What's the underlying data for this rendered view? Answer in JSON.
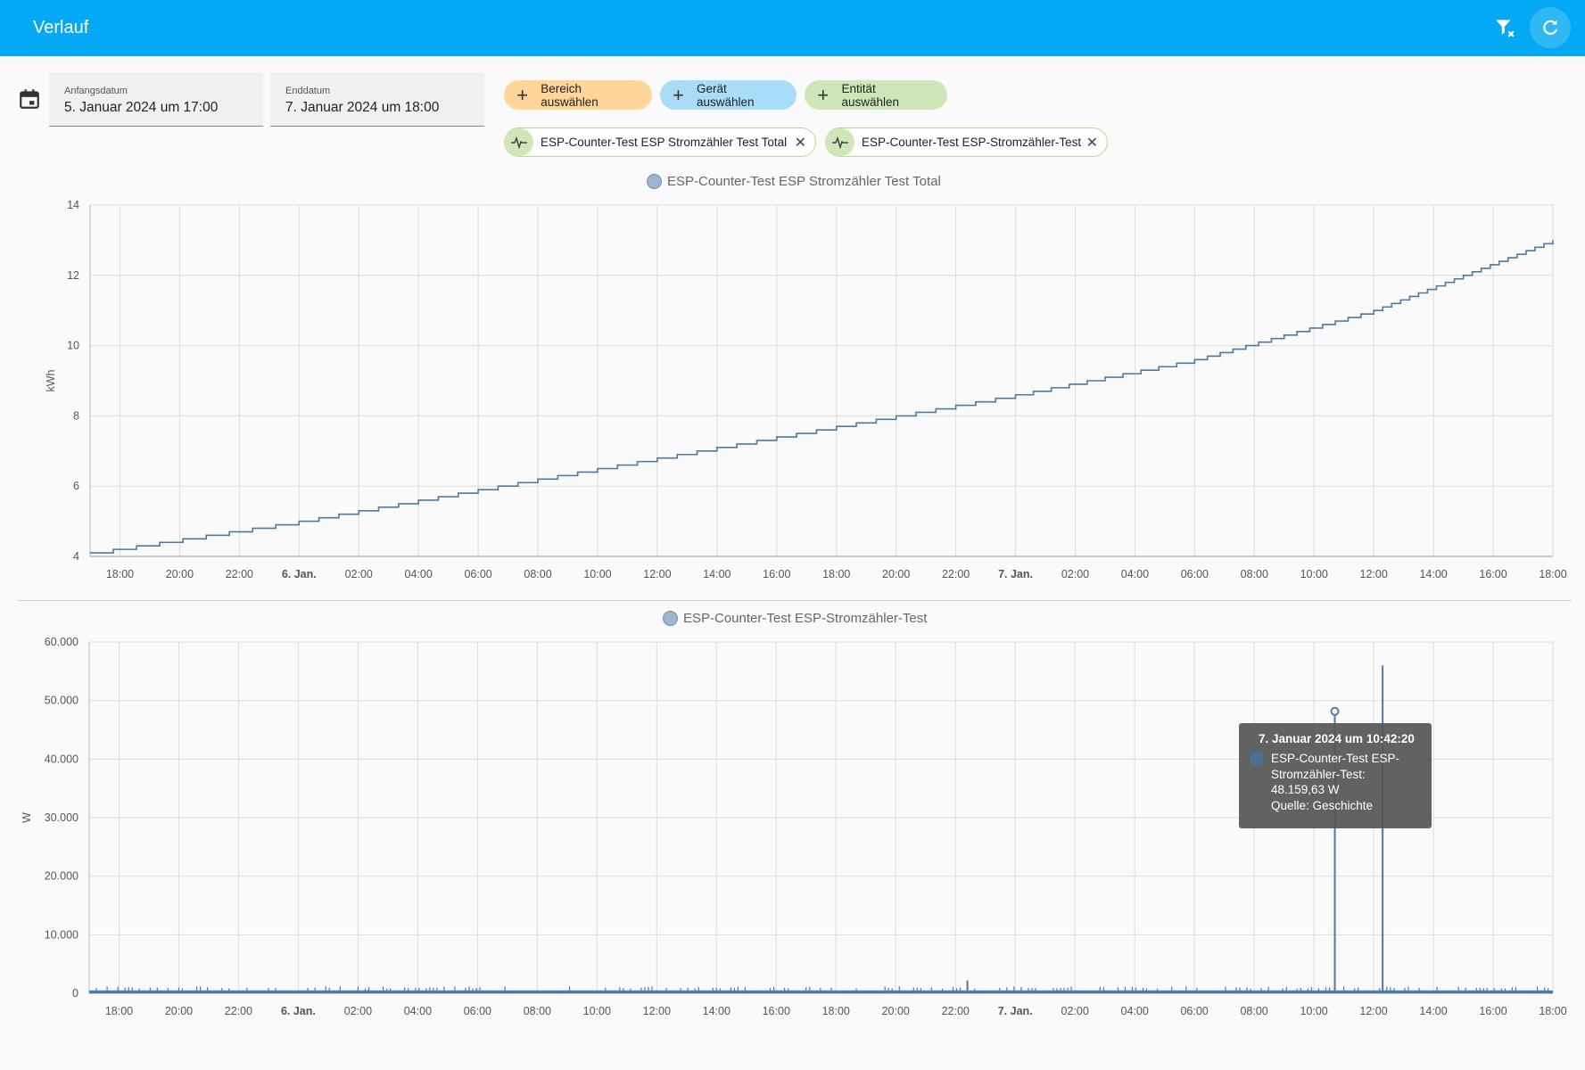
{
  "header": {
    "title": "Verlauf",
    "icons": [
      "filter-remove-icon",
      "refresh-icon"
    ]
  },
  "date_range": {
    "start_label": "Anfangsdatum",
    "start_value": "5. Januar 2024 um 17:00",
    "end_label": "Enddatum",
    "end_value": "7. Januar 2024 um 18:00"
  },
  "pickers": {
    "area": "Bereich auswählen",
    "device": "Gerät auswählen",
    "entity": "Entität auswählen"
  },
  "selected_entities": [
    "ESP-Counter-Test ESP Stromzähler Test Total",
    "ESP-Counter-Test ESP-Stromzähler-Test"
  ],
  "colors": {
    "accent": "#03a9f4",
    "series": "#4e79a7",
    "area_chip": "#ffd59a",
    "device_chip": "#a9dcf7",
    "entity_chip": "#cfe7b8"
  },
  "tooltip": {
    "title": "7. Januar 2024 um 10:42:20",
    "text": "ESP-Counter-Test ESP-Stromzähler-Test: 48.159,63 W",
    "source": "Quelle: Geschichte"
  },
  "chart_data": [
    {
      "type": "line",
      "step": true,
      "series": [
        {
          "name": "ESP-Counter-Test ESP Stromzähler Test Total"
        }
      ],
      "ylabel": "kWh",
      "ylim": [
        4,
        14
      ],
      "yticks": [
        "4",
        "6",
        "8",
        "10",
        "12",
        "14"
      ],
      "xticks": [
        "18:00",
        "20:00",
        "22:00",
        "6. Jan.",
        "02:00",
        "04:00",
        "06:00",
        "08:00",
        "10:00",
        "12:00",
        "14:00",
        "16:00",
        "18:00",
        "20:00",
        "22:00",
        "7. Jan.",
        "02:00",
        "04:00",
        "06:00",
        "08:00",
        "10:00",
        "12:00",
        "14:00",
        "16:00",
        "18:00"
      ],
      "xlim_hours": [
        0,
        49
      ],
      "x_hours": [
        0,
        7,
        13,
        19,
        25,
        31,
        37,
        43,
        49
      ],
      "values": [
        4.1,
        5.0,
        5.9,
        6.8,
        7.7,
        8.6,
        9.6,
        11.0,
        13.0
      ],
      "legend": "top-center",
      "grid": true
    },
    {
      "type": "line",
      "series": [
        {
          "name": "ESP-Counter-Test ESP-Stromzähler-Test"
        }
      ],
      "ylabel": "W",
      "ylim": [
        0,
        60000
      ],
      "yticks": [
        "0",
        "10.000",
        "20.000",
        "30.000",
        "40.000",
        "50.000",
        "60.000"
      ],
      "xticks": [
        "18:00",
        "20:00",
        "22:00",
        "6. Jan.",
        "02:00",
        "04:00",
        "06:00",
        "08:00",
        "10:00",
        "12:00",
        "14:00",
        "16:00",
        "18:00",
        "20:00",
        "22:00",
        "7. Jan.",
        "02:00",
        "04:00",
        "06:00",
        "08:00",
        "10:00",
        "12:00",
        "14:00",
        "16:00",
        "18:00"
      ],
      "xlim_hours": [
        0,
        49
      ],
      "baseline": 500,
      "spikes": [
        {
          "x_hour": 29.4,
          "value": 2200
        },
        {
          "x_hour": 41.7,
          "value": 48159.63
        },
        {
          "x_hour": 43.3,
          "value": 56000
        }
      ],
      "legend": "top-center",
      "grid": true
    }
  ]
}
